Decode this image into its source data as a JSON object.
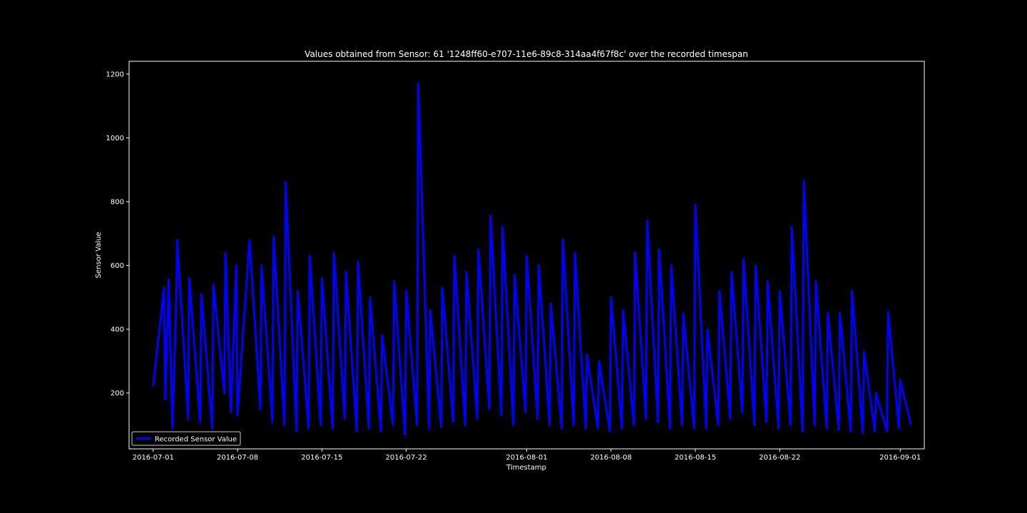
{
  "chart_data": {
    "type": "line",
    "title": "Values obtained from Sensor: 61 '1248ff60-e707-11e6-89c8-314aa4f67f8c' over the recorded timespan",
    "xlabel": "Timestamp",
    "ylabel": "Sensor Value",
    "x_axis_type": "date",
    "xlim": [
      "2016-06-29",
      "2016-09-03"
    ],
    "ylim": [
      25,
      1240
    ],
    "x_ticks": [
      "2016-07-01",
      "2016-07-08",
      "2016-07-15",
      "2016-07-22",
      "2016-08-01",
      "2016-08-08",
      "2016-08-15",
      "2016-08-22",
      "2016-09-01"
    ],
    "y_ticks": [
      200,
      400,
      600,
      800,
      1000,
      1200
    ],
    "grid": false,
    "legend_position": "lower-left",
    "colors": {
      "background": "#000000",
      "series": "#0000ff",
      "axes": "#ffffff"
    },
    "series": [
      {
        "name": "Recorded Sensor Value",
        "points": [
          [
            "2016-07-01",
            220
          ],
          [
            "2016-07-01",
            530
          ],
          [
            "2016-07-02",
            180
          ],
          [
            "2016-07-02",
            555
          ],
          [
            "2016-07-02",
            90
          ],
          [
            "2016-07-02",
            470
          ],
          [
            "2016-07-03",
            680
          ],
          [
            "2016-07-03",
            120
          ],
          [
            "2016-07-04",
            560
          ],
          [
            "2016-07-04",
            110
          ],
          [
            "2016-07-05",
            510
          ],
          [
            "2016-07-05",
            90
          ],
          [
            "2016-07-06",
            540
          ],
          [
            "2016-07-06",
            200
          ],
          [
            "2016-07-07",
            640
          ],
          [
            "2016-07-07",
            140
          ],
          [
            "2016-07-07",
            600
          ],
          [
            "2016-07-08",
            130
          ],
          [
            "2016-07-09",
            680
          ],
          [
            "2016-07-09",
            150
          ],
          [
            "2016-07-10",
            600
          ],
          [
            "2016-07-10",
            110
          ],
          [
            "2016-07-11",
            690
          ],
          [
            "2016-07-11",
            100
          ],
          [
            "2016-07-12",
            860
          ],
          [
            "2016-07-12",
            80
          ],
          [
            "2016-07-13",
            520
          ],
          [
            "2016-07-13",
            90
          ],
          [
            "2016-07-14",
            630
          ],
          [
            "2016-07-14",
            100
          ],
          [
            "2016-07-15",
            560
          ],
          [
            "2016-07-15",
            90
          ],
          [
            "2016-07-16",
            640
          ],
          [
            "2016-07-16",
            120
          ],
          [
            "2016-07-17",
            580
          ],
          [
            "2016-07-17",
            80
          ],
          [
            "2016-07-18",
            610
          ],
          [
            "2016-07-18",
            90
          ],
          [
            "2016-07-19",
            500
          ],
          [
            "2016-07-19",
            80
          ],
          [
            "2016-07-20",
            380
          ],
          [
            "2016-07-20",
            100
          ],
          [
            "2016-07-21",
            550
          ],
          [
            "2016-07-21",
            70
          ],
          [
            "2016-07-22",
            520
          ],
          [
            "2016-07-22",
            100
          ],
          [
            "2016-07-23",
            1170
          ],
          [
            "2016-07-23",
            90
          ],
          [
            "2016-07-24",
            460
          ],
          [
            "2016-07-24",
            95
          ],
          [
            "2016-07-25",
            530
          ],
          [
            "2016-07-25",
            110
          ],
          [
            "2016-07-26",
            630
          ],
          [
            "2016-07-26",
            100
          ],
          [
            "2016-07-27",
            580
          ],
          [
            "2016-07-27",
            120
          ],
          [
            "2016-07-28",
            650
          ],
          [
            "2016-07-28",
            150
          ],
          [
            "2016-07-29",
            755
          ],
          [
            "2016-07-29",
            130
          ],
          [
            "2016-07-30",
            720
          ],
          [
            "2016-07-30",
            100
          ],
          [
            "2016-07-31",
            570
          ],
          [
            "2016-07-31",
            140
          ],
          [
            "2016-08-01",
            630
          ],
          [
            "2016-08-01",
            120
          ],
          [
            "2016-08-02",
            600
          ],
          [
            "2016-08-02",
            100
          ],
          [
            "2016-08-03",
            480
          ],
          [
            "2016-08-03",
            90
          ],
          [
            "2016-08-04",
            680
          ],
          [
            "2016-08-04",
            100
          ],
          [
            "2016-08-05",
            640
          ],
          [
            "2016-08-05",
            90
          ],
          [
            "2016-08-06",
            320
          ],
          [
            "2016-08-06",
            90
          ],
          [
            "2016-08-07",
            300
          ],
          [
            "2016-08-07",
            80
          ],
          [
            "2016-08-08",
            500
          ],
          [
            "2016-08-08",
            90
          ],
          [
            "2016-08-09",
            460
          ],
          [
            "2016-08-09",
            100
          ],
          [
            "2016-08-10",
            640
          ],
          [
            "2016-08-10",
            120
          ],
          [
            "2016-08-11",
            740
          ],
          [
            "2016-08-11",
            110
          ],
          [
            "2016-08-12",
            650
          ],
          [
            "2016-08-12",
            90
          ],
          [
            "2016-08-13",
            600
          ],
          [
            "2016-08-13",
            100
          ],
          [
            "2016-08-14",
            450
          ],
          [
            "2016-08-14",
            90
          ],
          [
            "2016-08-15",
            790
          ],
          [
            "2016-08-15",
            90
          ],
          [
            "2016-08-16",
            400
          ],
          [
            "2016-08-16",
            100
          ],
          [
            "2016-08-17",
            520
          ],
          [
            "2016-08-17",
            120
          ],
          [
            "2016-08-18",
            580
          ],
          [
            "2016-08-18",
            140
          ],
          [
            "2016-08-19",
            620
          ],
          [
            "2016-08-19",
            100
          ],
          [
            "2016-08-20",
            600
          ],
          [
            "2016-08-20",
            110
          ],
          [
            "2016-08-21",
            550
          ],
          [
            "2016-08-21",
            90
          ],
          [
            "2016-08-22",
            520
          ],
          [
            "2016-08-22",
            100
          ],
          [
            "2016-08-23",
            720
          ],
          [
            "2016-08-23",
            80
          ],
          [
            "2016-08-24",
            865
          ],
          [
            "2016-08-24",
            100
          ],
          [
            "2016-08-25",
            550
          ],
          [
            "2016-08-25",
            90
          ],
          [
            "2016-08-26",
            450
          ],
          [
            "2016-08-26",
            85
          ],
          [
            "2016-08-27",
            450
          ],
          [
            "2016-08-27",
            80
          ],
          [
            "2016-08-28",
            520
          ],
          [
            "2016-08-28",
            75
          ],
          [
            "2016-08-29",
            330
          ],
          [
            "2016-08-29",
            80
          ],
          [
            "2016-08-30",
            200
          ],
          [
            "2016-08-30",
            80
          ],
          [
            "2016-08-31",
            455
          ],
          [
            "2016-08-31",
            90
          ],
          [
            "2016-09-01",
            240
          ],
          [
            "2016-09-01",
            100
          ]
        ]
      }
    ]
  }
}
